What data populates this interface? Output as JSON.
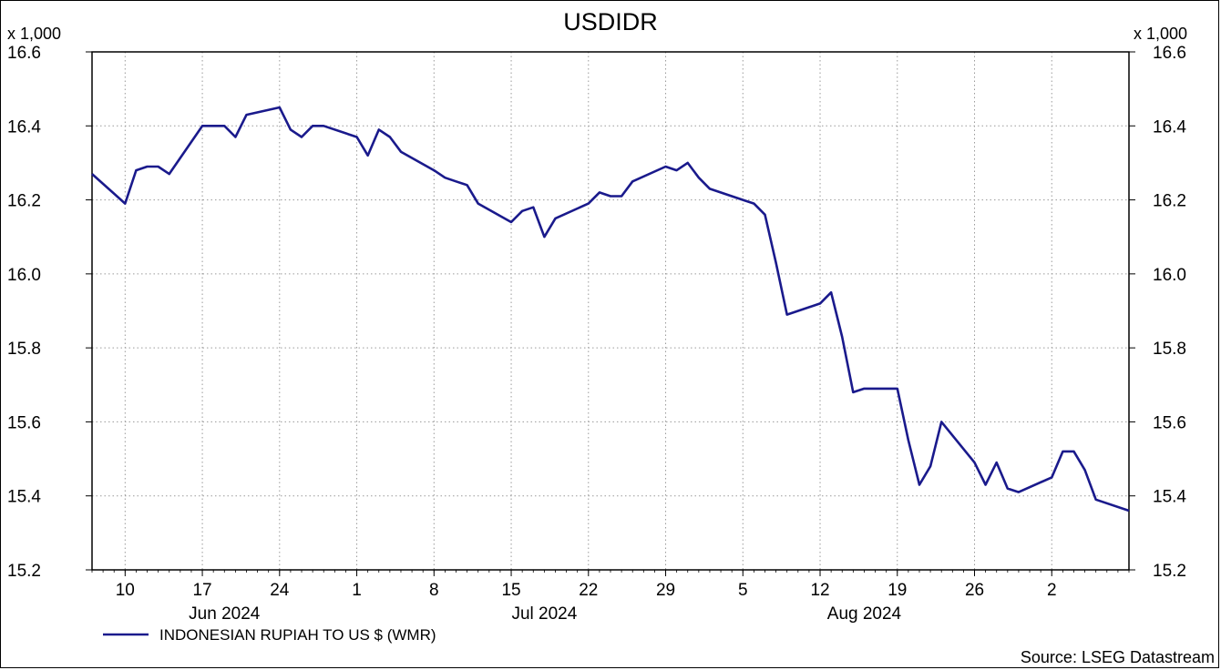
{
  "chart_data": {
    "type": "line",
    "title": "USDIDR",
    "y_multiplier_label": "x 1,000",
    "ylim": [
      15.2,
      16.6
    ],
    "yticks": [
      "16.6",
      "16.4",
      "16.2",
      "16.0",
      "15.8",
      "15.6",
      "15.4",
      "15.2"
    ],
    "grid": true,
    "x_ticks": [
      {
        "date": "2024-06-10",
        "label": "10"
      },
      {
        "date": "2024-06-17",
        "label": "17"
      },
      {
        "date": "2024-06-24",
        "label": "24"
      },
      {
        "date": "2024-07-01",
        "label": "1"
      },
      {
        "date": "2024-07-08",
        "label": "8"
      },
      {
        "date": "2024-07-15",
        "label": "15"
      },
      {
        "date": "2024-07-22",
        "label": "22"
      },
      {
        "date": "2024-07-29",
        "label": "29"
      },
      {
        "date": "2024-08-05",
        "label": "5"
      },
      {
        "date": "2024-08-12",
        "label": "12"
      },
      {
        "date": "2024-08-19",
        "label": "19"
      },
      {
        "date": "2024-08-26",
        "label": "26"
      },
      {
        "date": "2024-09-02",
        "label": "2"
      }
    ],
    "month_labels": [
      {
        "date": "2024-06-19",
        "label": "Jun 2024"
      },
      {
        "date": "2024-07-18",
        "label": "Jul 2024"
      },
      {
        "date": "2024-08-16",
        "label": "Aug 2024"
      }
    ],
    "xlim": [
      "2024-06-07",
      "2024-09-06"
    ],
    "series": [
      {
        "name": "INDONESIAN RUPIAH TO US $ (WMR)",
        "color": "#1a1a8c",
        "points": [
          [
            "2024-06-07",
            16.27
          ],
          [
            "2024-06-10",
            16.19
          ],
          [
            "2024-06-11",
            16.28
          ],
          [
            "2024-06-12",
            16.29
          ],
          [
            "2024-06-13",
            16.29
          ],
          [
            "2024-06-14",
            16.27
          ],
          [
            "2024-06-17",
            16.4
          ],
          [
            "2024-06-18",
            16.4
          ],
          [
            "2024-06-19",
            16.4
          ],
          [
            "2024-06-20",
            16.37
          ],
          [
            "2024-06-21",
            16.43
          ],
          [
            "2024-06-24",
            16.45
          ],
          [
            "2024-06-25",
            16.39
          ],
          [
            "2024-06-26",
            16.37
          ],
          [
            "2024-06-27",
            16.4
          ],
          [
            "2024-06-28",
            16.4
          ],
          [
            "2024-07-01",
            16.37
          ],
          [
            "2024-07-02",
            16.32
          ],
          [
            "2024-07-03",
            16.39
          ],
          [
            "2024-07-04",
            16.37
          ],
          [
            "2024-07-05",
            16.33
          ],
          [
            "2024-07-08",
            16.28
          ],
          [
            "2024-07-09",
            16.26
          ],
          [
            "2024-07-10",
            16.25
          ],
          [
            "2024-07-11",
            16.24
          ],
          [
            "2024-07-12",
            16.19
          ],
          [
            "2024-07-15",
            16.14
          ],
          [
            "2024-07-16",
            16.17
          ],
          [
            "2024-07-17",
            16.18
          ],
          [
            "2024-07-18",
            16.1
          ],
          [
            "2024-07-19",
            16.15
          ],
          [
            "2024-07-22",
            16.19
          ],
          [
            "2024-07-23",
            16.22
          ],
          [
            "2024-07-24",
            16.21
          ],
          [
            "2024-07-25",
            16.21
          ],
          [
            "2024-07-26",
            16.25
          ],
          [
            "2024-07-29",
            16.29
          ],
          [
            "2024-07-30",
            16.28
          ],
          [
            "2024-07-31",
            16.3
          ],
          [
            "2024-08-01",
            16.26
          ],
          [
            "2024-08-02",
            16.23
          ],
          [
            "2024-08-05",
            16.2
          ],
          [
            "2024-08-06",
            16.19
          ],
          [
            "2024-08-07",
            16.16
          ],
          [
            "2024-08-08",
            16.03
          ],
          [
            "2024-08-09",
            15.89
          ],
          [
            "2024-08-12",
            15.92
          ],
          [
            "2024-08-13",
            15.95
          ],
          [
            "2024-08-14",
            15.83
          ],
          [
            "2024-08-15",
            15.68
          ],
          [
            "2024-08-16",
            15.69
          ],
          [
            "2024-08-19",
            15.69
          ],
          [
            "2024-08-20",
            15.55
          ],
          [
            "2024-08-21",
            15.43
          ],
          [
            "2024-08-22",
            15.48
          ],
          [
            "2024-08-23",
            15.6
          ],
          [
            "2024-08-26",
            15.49
          ],
          [
            "2024-08-27",
            15.43
          ],
          [
            "2024-08-28",
            15.49
          ],
          [
            "2024-08-29",
            15.42
          ],
          [
            "2024-08-30",
            15.41
          ],
          [
            "2024-09-02",
            15.45
          ],
          [
            "2024-09-03",
            15.52
          ],
          [
            "2024-09-04",
            15.52
          ],
          [
            "2024-09-05",
            15.47
          ],
          [
            "2024-09-06",
            15.39
          ],
          [
            "2024-09-09",
            15.36
          ]
        ]
      }
    ],
    "source": "Source: LSEG Datastream"
  }
}
